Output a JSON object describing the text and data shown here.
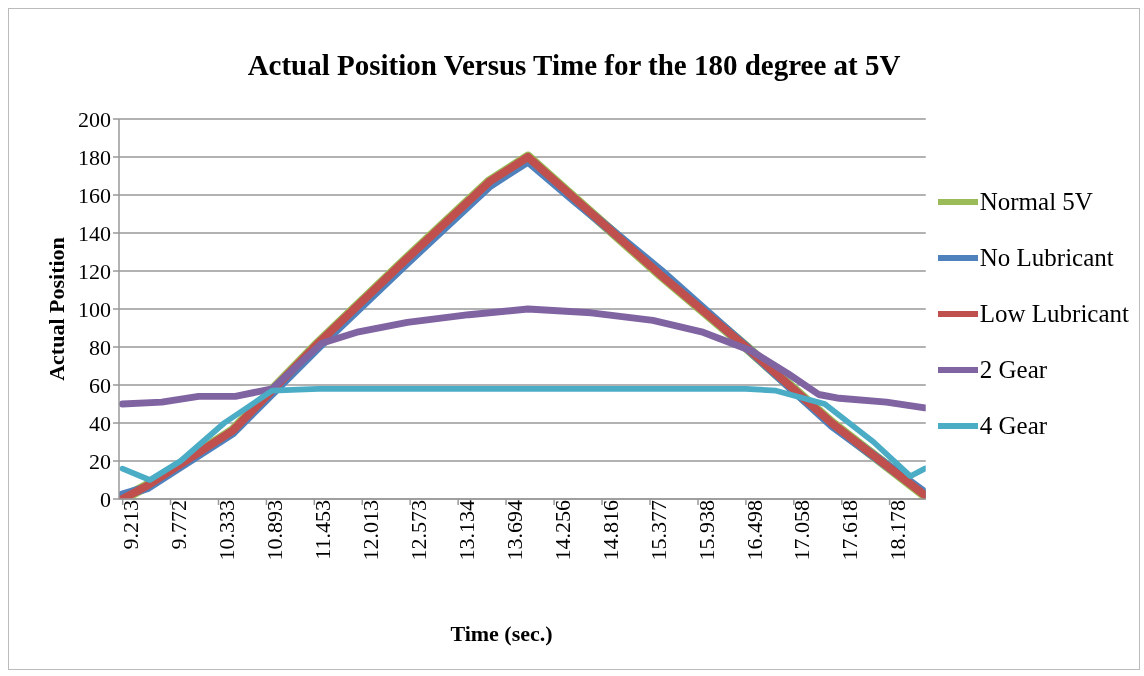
{
  "chart_data": {
    "type": "line",
    "title": "Actual Position Versus Time for the 180 degree at 5V",
    "xlabel": "Time (sec.)",
    "ylabel": "Actual Position",
    "xlim": [
      9.17,
      18.6
    ],
    "xticks": [
      9.213,
      9.772,
      10.333,
      10.893,
      11.453,
      12.013,
      12.573,
      13.134,
      13.694,
      14.256,
      14.816,
      15.377,
      15.938,
      16.498,
      17.058,
      17.618,
      18.178
    ],
    "ylim": [
      0,
      200
    ],
    "yticks": [
      0,
      20,
      40,
      60,
      80,
      100,
      120,
      140,
      160,
      180,
      200
    ],
    "grid": "y",
    "legend": "right",
    "marker": "none",
    "line_style": "solid",
    "series": [
      {
        "name": "Normal 5V",
        "color": "#9bbb59",
        "x": [
          9.21,
          9.5,
          10.5,
          11.5,
          12.5,
          13.5,
          13.95,
          14.5,
          15.5,
          16.5,
          17.5,
          18.59
        ],
        "values": [
          0,
          7,
          36,
          82,
          125,
          167,
          180,
          158,
          118,
          80,
          40,
          2
        ]
      },
      {
        "name": "No Lubricant",
        "color": "#4f81bd",
        "x": [
          9.21,
          9.5,
          10.5,
          11.5,
          12.5,
          13.5,
          13.95,
          14.5,
          15.5,
          16.5,
          17.5,
          18.59
        ],
        "values": [
          2,
          6,
          35,
          80,
          123,
          165,
          178,
          157,
          120,
          80,
          39,
          3
        ]
      },
      {
        "name": "Low Lubricant",
        "color": "#c0504d",
        "x": [
          9.21,
          9.5,
          10.5,
          11.5,
          12.5,
          13.5,
          13.95,
          14.5,
          15.5,
          16.5,
          17.5,
          18.59
        ],
        "values": [
          0,
          7,
          36,
          82,
          125,
          167,
          180,
          158,
          118,
          80,
          40,
          2
        ]
      },
      {
        "name": "2 Gear",
        "color": "#8064a2",
        "x": [
          9.21,
          9.67,
          10.1,
          10.53,
          10.96,
          11.54,
          11.97,
          12.54,
          13.26,
          13.95,
          14.69,
          15.41,
          15.98,
          16.56,
          16.99,
          17.35,
          17.59,
          18.14,
          18.59
        ],
        "values": [
          50,
          51,
          54,
          54,
          58,
          82,
          88,
          93,
          97,
          100,
          98,
          94,
          88,
          78,
          66,
          55,
          53,
          51,
          48
        ]
      },
      {
        "name": "4 Gear",
        "color": "#4bacc6",
        "x": [
          9.21,
          9.53,
          9.89,
          10.4,
          10.96,
          11.5,
          12.5,
          13.5,
          14.5,
          15.5,
          16.5,
          16.85,
          17.42,
          17.99,
          18.42,
          18.59
        ],
        "values": [
          16,
          10,
          20,
          40,
          57,
          58,
          58,
          58,
          58,
          58,
          58,
          57,
          50,
          30,
          12,
          16
        ]
      }
    ]
  }
}
